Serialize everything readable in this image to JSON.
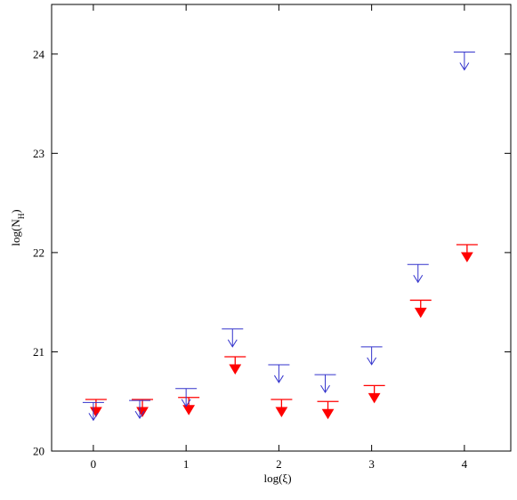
{
  "chart_data": {
    "type": "scatter",
    "title": "",
    "xlabel": "log(ξ)",
    "ylabel": {
      "main": "log(N",
      "sub": "H",
      "end": ")"
    },
    "xlim": [
      -0.45,
      4.5
    ],
    "ylim": [
      20,
      24.5
    ],
    "xticks": [
      0,
      1,
      2,
      3,
      4
    ],
    "yticks": [
      20,
      21,
      22,
      23,
      24
    ],
    "grid": false,
    "colors": {
      "red": "#ff0000",
      "blue": "#3333cc",
      "axis": "#000000"
    },
    "series": [
      {
        "marker": "filled-triangle-down upper limit",
        "color": "#ff0000",
        "points": [
          {
            "x": 0.0,
            "y": 20.52
          },
          {
            "x": 0.5,
            "y": 20.52
          },
          {
            "x": 1.0,
            "y": 20.54
          },
          {
            "x": 1.5,
            "y": 20.95
          },
          {
            "x": 2.0,
            "y": 20.52
          },
          {
            "x": 2.5,
            "y": 20.5
          },
          {
            "x": 3.0,
            "y": 20.66
          },
          {
            "x": 3.5,
            "y": 21.52
          },
          {
            "x": 4.0,
            "y": 22.08
          }
        ]
      },
      {
        "marker": "open-arrow-down upper limit",
        "color": "#3333cc",
        "points": [
          {
            "x": 0.0,
            "y": 20.49
          },
          {
            "x": 0.5,
            "y": 20.51
          },
          {
            "x": 1.0,
            "y": 20.63
          },
          {
            "x": 1.5,
            "y": 21.23
          },
          {
            "x": 2.0,
            "y": 20.87
          },
          {
            "x": 2.5,
            "y": 20.77
          },
          {
            "x": 3.0,
            "y": 21.05
          },
          {
            "x": 3.5,
            "y": 21.88
          },
          {
            "x": 4.0,
            "y": 24.02
          }
        ]
      }
    ]
  }
}
